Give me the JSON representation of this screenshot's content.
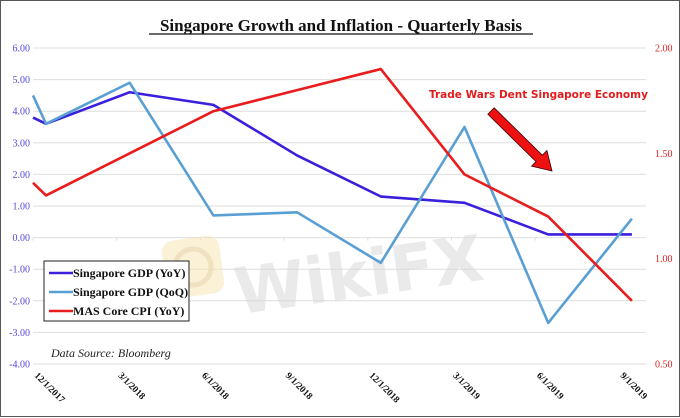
{
  "chart_data": {
    "type": "line",
    "title": "Singapore Growth and Inflation - Quarterly Basis",
    "categories": [
      "12/1/2017",
      "3/1/2018",
      "6/1/2018",
      "9/1/2018",
      "12/1/2018",
      "3/1/2019",
      "6/1/2019",
      "9/1/2019"
    ],
    "series": [
      {
        "name": "Singapore GDP (YoY)",
        "axis": "left",
        "color": "#3a1fdc",
        "lead_in": 3.8,
        "values": [
          3.6,
          4.6,
          4.2,
          2.6,
          1.3,
          1.1,
          0.1,
          0.1
        ]
      },
      {
        "name": "Singapore GDP (QoQ)",
        "axis": "left",
        "color": "#5a9fd4",
        "lead_in": 4.5,
        "values": [
          3.6,
          4.9,
          0.7,
          0.8,
          -0.8,
          3.5,
          -2.7,
          0.6
        ]
      },
      {
        "name": "MAS Core CPI (YoY)",
        "axis": "right",
        "color": "#e81c1c",
        "lead_in": 1.36,
        "values": [
          1.3,
          1.5,
          1.7,
          1.8,
          1.9,
          1.4,
          1.2,
          0.8
        ]
      }
    ],
    "y_left": {
      "min": -4,
      "max": 6,
      "ticks": [
        "6.00",
        "5.00",
        "4.00",
        "3.00",
        "2.00",
        "1.00",
        "0.00",
        "-1.00",
        "-2.00",
        "-3.00",
        "-4.00"
      ]
    },
    "y_right": {
      "min": 0.5,
      "max": 2.0,
      "ticks": [
        "2.00",
        "1.50",
        "1.00",
        "0.50"
      ]
    },
    "grid": true,
    "legend": {
      "placement": "bottom-left",
      "entries": [
        "Singapore GDP (YoY)",
        "Singapore GDP (QoQ)",
        "MAS Core CPI (YoY)"
      ]
    },
    "annotation": {
      "text": "Trade Wars Dent Singapore Economy",
      "arrow_color": "#ee1111"
    },
    "source": "Data Source: Bloomberg",
    "watermark": "WikiFX"
  }
}
